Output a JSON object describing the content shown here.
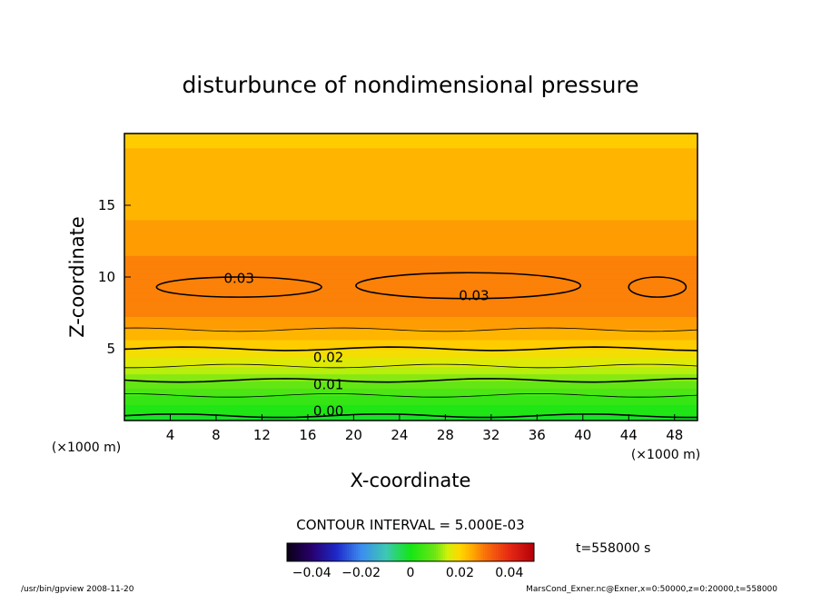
{
  "chart_data": {
    "type": "heatmap",
    "title": "disturbunce of nondimensional pressure",
    "xlabel": "X-coordinate",
    "ylabel": "Z-coordinate",
    "x_unit_left": "(×1000 m)",
    "x_unit_right": "(×1000 m)",
    "xlim": [
      0,
      50
    ],
    "ylim": [
      0,
      20
    ],
    "x_ticks": [
      4,
      8,
      12,
      16,
      20,
      24,
      28,
      32,
      36,
      40,
      44,
      48
    ],
    "y_ticks": [
      5,
      10,
      15
    ],
    "contour_interval": "CONTOUR INTERVAL = 5.000E-03",
    "contour_labels": [
      {
        "text": "0.03",
        "x": 10,
        "z": 9.9
      },
      {
        "text": "0.03",
        "x": 30.5,
        "z": 8.7
      },
      {
        "text": "0.02",
        "x": 17.8,
        "z": 4.4
      },
      {
        "text": "0.01",
        "x": 17.8,
        "z": 2.5
      },
      {
        "text": "0.00",
        "x": 17.8,
        "z": 0.65
      }
    ],
    "profile": [
      {
        "z": 0.0,
        "value": -0.001
      },
      {
        "z": 1.0,
        "value": 0.002
      },
      {
        "z": 2.0,
        "value": 0.006
      },
      {
        "z": 3.0,
        "value": 0.011
      },
      {
        "z": 4.0,
        "value": 0.016
      },
      {
        "z": 5.0,
        "value": 0.02
      },
      {
        "z": 6.0,
        "value": 0.024
      },
      {
        "z": 7.0,
        "value": 0.027
      },
      {
        "z": 8.0,
        "value": 0.029
      },
      {
        "z": 9.0,
        "value": 0.03
      },
      {
        "z": 10.0,
        "value": 0.029
      },
      {
        "z": 12.0,
        "value": 0.027
      },
      {
        "z": 14.0,
        "value": 0.025
      },
      {
        "z": 16.0,
        "value": 0.024
      },
      {
        "z": 18.0,
        "value": 0.023
      },
      {
        "z": 20.0,
        "value": 0.022
      }
    ],
    "colorbar": {
      "range": [
        -0.05,
        0.05
      ],
      "tick_labels": [
        "−0.04",
        "−0.02",
        "0",
        "0.02",
        "0.04"
      ],
      "tick_values": [
        -0.04,
        -0.02,
        0,
        0.02,
        0.04
      ]
    },
    "time_label": "t=558000 s"
  },
  "footer": {
    "left": "/usr/bin/gpview  2008-11-20",
    "right": "MarsCond_Exner.nc@Exner,x=0:50000,z=0:20000,t=558000"
  }
}
